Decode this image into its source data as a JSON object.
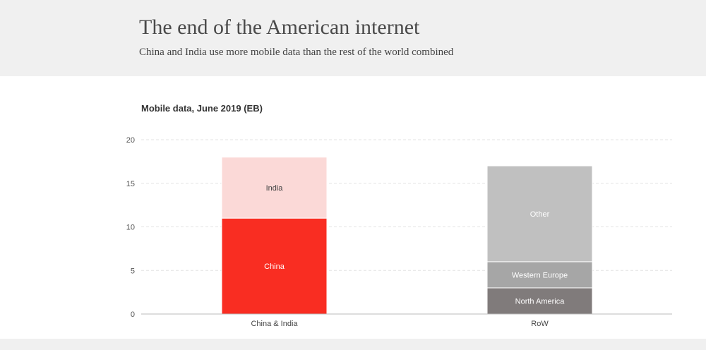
{
  "header": {
    "title": "The end of the American internet",
    "subtitle": "China and India use more mobile data than the rest of the world combined"
  },
  "chart_data": {
    "type": "bar",
    "stacked": true,
    "title": "Mobile data, June 2019 (EB)",
    "xlabel": "",
    "ylabel": "",
    "ylim": [
      0,
      20
    ],
    "yticks": [
      0,
      5,
      10,
      15,
      20
    ],
    "grid": true,
    "categories": [
      "China & India",
      "RoW"
    ],
    "stacks": [
      [
        {
          "name": "China",
          "value": 11,
          "color": "#f92d22",
          "label_color": "#ffffff"
        },
        {
          "name": "India",
          "value": 7,
          "color": "#fbd9d7",
          "label_color": "#444444"
        }
      ],
      [
        {
          "name": "North America",
          "value": 3,
          "color": "#807b7b",
          "label_color": "#ffffff"
        },
        {
          "name": "Western Europe",
          "value": 3,
          "color": "#a6a6a6",
          "label_color": "#ffffff"
        },
        {
          "name": "Other",
          "value": 11,
          "color": "#c0c0c0",
          "label_color": "#ffffff"
        }
      ]
    ]
  }
}
